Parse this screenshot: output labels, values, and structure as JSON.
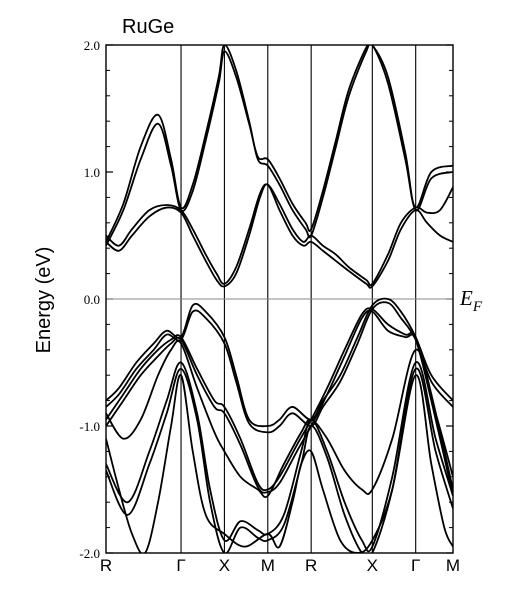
{
  "chart_data": {
    "type": "line",
    "title": "RuGe",
    "ylabel": "Energy (eV)",
    "ylim": [
      -2.0,
      2.0
    ],
    "yticks": [
      -2.0,
      -1.0,
      0.0,
      1.0,
      2.0
    ],
    "ytick_labels": [
      "-2.0",
      "-1.0",
      "0.0",
      "1.0",
      "2.0"
    ],
    "fermi_level": 0.0,
    "fermi_label": {
      "main": "E",
      "sub": "F"
    },
    "xlim": [
      0,
      8.0
    ],
    "kpoints": [
      {
        "name": "R",
        "x": 0.0
      },
      {
        "name": "Γ",
        "x": 1.73
      },
      {
        "name": "X",
        "x": 2.73
      },
      {
        "name": "M",
        "x": 3.73
      },
      {
        "name": "R",
        "x": 4.73
      },
      {
        "name": "X",
        "x": 6.14
      },
      {
        "name": "Γ",
        "x": 7.14
      },
      {
        "name": "M",
        "x": 8.0
      }
    ],
    "line_color": "#000000",
    "series": [
      {
        "x": [
          0,
          0.3,
          0.6,
          1.0,
          1.4,
          1.73,
          2.0,
          2.3,
          2.55,
          2.73,
          3.0,
          3.3,
          3.55,
          3.73,
          4.0,
          4.3,
          4.55,
          4.73,
          5.0,
          5.3,
          5.6,
          6.0,
          6.14,
          6.5,
          6.8,
          7.14,
          7.4,
          7.7,
          8.0
        ],
        "y": [
          0.45,
          0.38,
          0.5,
          0.65,
          0.72,
          0.68,
          0.5,
          0.3,
          0.15,
          0.1,
          0.2,
          0.5,
          0.8,
          0.9,
          0.7,
          0.5,
          0.42,
          0.45,
          0.38,
          0.3,
          0.22,
          0.12,
          0.1,
          0.3,
          0.55,
          0.7,
          0.6,
          0.5,
          0.45
        ]
      },
      {
        "x": [
          0,
          0.3,
          0.6,
          1.0,
          1.4,
          1.73,
          2.0,
          2.3,
          2.55,
          2.73,
          3.0,
          3.3,
          3.55,
          3.73,
          4.0,
          4.3,
          4.55,
          4.73,
          5.0,
          5.3,
          5.6,
          6.0,
          6.14,
          6.5,
          6.8,
          7.14,
          7.4,
          7.7,
          8.0
        ],
        "y": [
          0.5,
          0.42,
          0.55,
          0.7,
          0.74,
          0.7,
          0.55,
          0.35,
          0.2,
          0.12,
          0.25,
          0.55,
          0.83,
          0.9,
          0.75,
          0.55,
          0.45,
          0.5,
          0.42,
          0.35,
          0.25,
          0.15,
          0.12,
          0.35,
          0.6,
          0.72,
          0.68,
          0.7,
          0.88
        ]
      },
      {
        "x": [
          0,
          0.4,
          0.8,
          1.2,
          1.5,
          1.73,
          2.0,
          2.3,
          2.6,
          2.73,
          3.0,
          3.3,
          3.5,
          3.73,
          4.0,
          4.3,
          4.6,
          4.73,
          5.0,
          5.3,
          5.6,
          6.0,
          6.14,
          6.5,
          6.9,
          7.14,
          7.5,
          8.0
        ],
        "y": [
          0.45,
          0.75,
          1.2,
          1.45,
          1.1,
          0.72,
          0.9,
          1.3,
          1.75,
          2.0,
          1.8,
          1.4,
          1.1,
          1.05,
          0.9,
          0.7,
          0.55,
          0.5,
          0.8,
          1.2,
          1.6,
          1.95,
          2.0,
          1.7,
          1.1,
          0.72,
          1.0,
          1.05
        ]
      },
      {
        "x": [
          0,
          0.4,
          0.8,
          1.2,
          1.5,
          1.73,
          2.0,
          2.3,
          2.6,
          2.73,
          3.0,
          3.3,
          3.5,
          3.73,
          4.0,
          4.3,
          4.6,
          4.73,
          5.0,
          5.3,
          5.6,
          6.0,
          6.14,
          6.5,
          6.9,
          7.14,
          7.5,
          8.0
        ],
        "y": [
          0.42,
          0.7,
          1.1,
          1.38,
          1.05,
          0.7,
          0.85,
          1.25,
          1.7,
          1.95,
          1.75,
          1.38,
          1.12,
          1.1,
          0.95,
          0.75,
          0.6,
          0.55,
          0.85,
          1.25,
          1.65,
          1.98,
          2.0,
          1.75,
          1.15,
          0.7,
          0.95,
          1.0
        ]
      },
      {
        "x": [
          0,
          0.3,
          0.7,
          1.1,
          1.4,
          1.73,
          2.0,
          2.3,
          2.73,
          3.0,
          3.3,
          3.73,
          4.0,
          4.3,
          4.73,
          5.0,
          5.4,
          5.8,
          6.14,
          6.5,
          6.8,
          7.14,
          7.5,
          8.0
        ],
        "y": [
          -0.8,
          -0.7,
          -0.5,
          -0.35,
          -0.25,
          -0.3,
          -0.05,
          -0.1,
          -0.3,
          -0.6,
          -0.95,
          -1.0,
          -0.95,
          -0.85,
          -0.95,
          -0.8,
          -0.6,
          -0.3,
          -0.05,
          0.0,
          -0.1,
          -0.3,
          -0.6,
          -0.8
        ]
      },
      {
        "x": [
          0,
          0.3,
          0.7,
          1.1,
          1.4,
          1.73,
          2.0,
          2.3,
          2.73,
          3.0,
          3.3,
          3.73,
          4.0,
          4.3,
          4.73,
          5.0,
          5.4,
          5.8,
          6.14,
          6.5,
          6.8,
          7.14,
          7.5,
          8.0
        ],
        "y": [
          -0.85,
          -0.75,
          -0.55,
          -0.4,
          -0.28,
          -0.32,
          -0.1,
          -0.15,
          -0.35,
          -0.65,
          -0.98,
          -1.05,
          -1.0,
          -0.9,
          -1.0,
          -0.85,
          -0.65,
          -0.35,
          -0.08,
          -0.03,
          -0.15,
          -0.32,
          -0.65,
          -0.85
        ]
      },
      {
        "x": [
          0,
          0.4,
          0.8,
          1.2,
          1.5,
          1.73,
          2.1,
          2.5,
          2.73,
          3.1,
          3.5,
          3.73,
          4.0,
          4.4,
          4.73,
          5.1,
          5.5,
          5.9,
          6.14,
          6.5,
          6.9,
          7.14,
          7.5,
          8.0
        ],
        "y": [
          -0.95,
          -0.75,
          -0.55,
          -0.4,
          -0.32,
          -0.3,
          -0.55,
          -0.8,
          -0.85,
          -1.1,
          -1.45,
          -1.5,
          -1.4,
          -1.15,
          -0.95,
          -0.7,
          -0.4,
          -0.12,
          -0.08,
          -0.2,
          -0.28,
          -0.3,
          -0.75,
          -1.5
        ]
      },
      {
        "x": [
          0,
          0.4,
          0.8,
          1.2,
          1.5,
          1.73,
          2.1,
          2.5,
          2.73,
          3.1,
          3.5,
          3.73,
          4.0,
          4.4,
          4.73,
          5.1,
          5.5,
          5.9,
          6.14,
          6.5,
          6.9,
          7.14,
          7.5,
          8.0
        ],
        "y": [
          -1.0,
          -0.8,
          -0.6,
          -0.45,
          -0.35,
          -0.32,
          -0.6,
          -0.85,
          -0.9,
          -1.15,
          -1.48,
          -1.52,
          -1.45,
          -1.2,
          -1.0,
          -0.75,
          -0.45,
          -0.15,
          -0.1,
          -0.25,
          -0.3,
          -0.32,
          -0.8,
          -1.55
        ]
      },
      {
        "x": [
          0,
          0.5,
          1.0,
          1.4,
          1.73,
          2.1,
          2.4,
          2.73,
          3.1,
          3.5,
          3.73,
          4.1,
          4.5,
          4.73,
          5.1,
          5.5,
          5.9,
          6.14,
          6.6,
          7.14,
          7.6,
          8.0
        ],
        "y": [
          -1.3,
          -1.6,
          -1.2,
          -0.8,
          -0.5,
          -0.9,
          -1.5,
          -1.9,
          -1.75,
          -1.82,
          -1.85,
          -1.7,
          -1.2,
          -0.95,
          -1.2,
          -1.6,
          -1.9,
          -1.95,
          -1.4,
          -0.5,
          -1.1,
          -1.55
        ]
      },
      {
        "x": [
          0,
          0.5,
          1.0,
          1.4,
          1.73,
          2.1,
          2.4,
          2.73,
          3.1,
          3.5,
          3.73,
          4.1,
          4.5,
          4.73,
          5.1,
          5.5,
          5.9,
          6.14,
          6.6,
          7.14,
          7.6,
          8.0
        ],
        "y": [
          -1.35,
          -1.7,
          -1.3,
          -0.9,
          -0.55,
          -0.95,
          -1.6,
          -2.0,
          -1.8,
          -1.88,
          -1.9,
          -1.78,
          -1.3,
          -1.0,
          -1.25,
          -1.7,
          -2.0,
          -2.0,
          -1.5,
          -0.55,
          -1.2,
          -1.65
        ]
      },
      {
        "x": [
          0,
          0.3,
          0.6,
          0.9,
          1.2,
          1.5,
          1.73,
          2.0,
          2.3,
          2.73,
          3.2,
          3.73,
          4.0,
          4.3,
          4.5,
          4.73,
          5.0,
          5.4,
          5.8,
          6.14,
          6.6,
          7.14,
          7.5,
          7.8,
          8.0
        ],
        "y": [
          -1.1,
          -1.5,
          -1.85,
          -2.0,
          -1.6,
          -1.0,
          -0.6,
          -1.2,
          -1.7,
          -1.85,
          -1.95,
          -1.85,
          -1.95,
          -1.6,
          -1.3,
          -1.2,
          -1.5,
          -1.9,
          -2.0,
          -1.9,
          -1.5,
          -0.6,
          -1.3,
          -1.8,
          -1.95
        ]
      },
      {
        "x": [
          0,
          0.4,
          0.8,
          1.2,
          1.5,
          1.73,
          2.1,
          2.5,
          2.73,
          3.1,
          3.5,
          3.73,
          4.1,
          4.5,
          4.73,
          5.1,
          5.5,
          5.9,
          6.14,
          6.6,
          7.14,
          7.6,
          8.0
        ],
        "y": [
          -0.9,
          -1.1,
          -0.95,
          -0.6,
          -0.4,
          -0.35,
          -0.7,
          -1.05,
          -1.2,
          -1.4,
          -1.5,
          -1.55,
          -1.3,
          -1.05,
          -0.95,
          -1.1,
          -1.35,
          -1.5,
          -1.5,
          -1.1,
          -0.4,
          -0.9,
          -1.4
        ]
      }
    ]
  }
}
